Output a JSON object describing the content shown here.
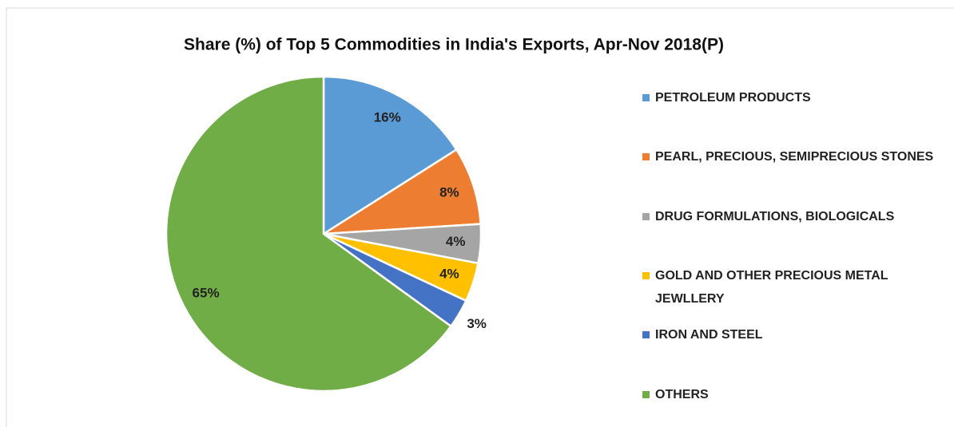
{
  "chart_data": {
    "type": "pie",
    "title": "Share (%) of Top 5 Commodities in India's Exports, Apr-Nov 2018(P)",
    "categories": [
      "PETROLEUM PRODUCTS",
      "PEARL, PRECIOUS, SEMIPRECIOUS STONES",
      "DRUG FORMULATIONS, BIOLOGICALS",
      "GOLD AND OTHER PRECIOUS METAL JEWLLERY",
      "IRON AND STEEL",
      "OTHERS"
    ],
    "values": [
      16,
      8,
      4,
      4,
      3,
      65
    ],
    "value_labels": [
      "16%",
      "8%",
      "4%",
      "4%",
      "3%",
      "65%"
    ],
    "colors": [
      "#5b9bd5",
      "#ed7d31",
      "#a5a5a5",
      "#ffc000",
      "#4472c4",
      "#70ad47"
    ],
    "legend": "right"
  }
}
